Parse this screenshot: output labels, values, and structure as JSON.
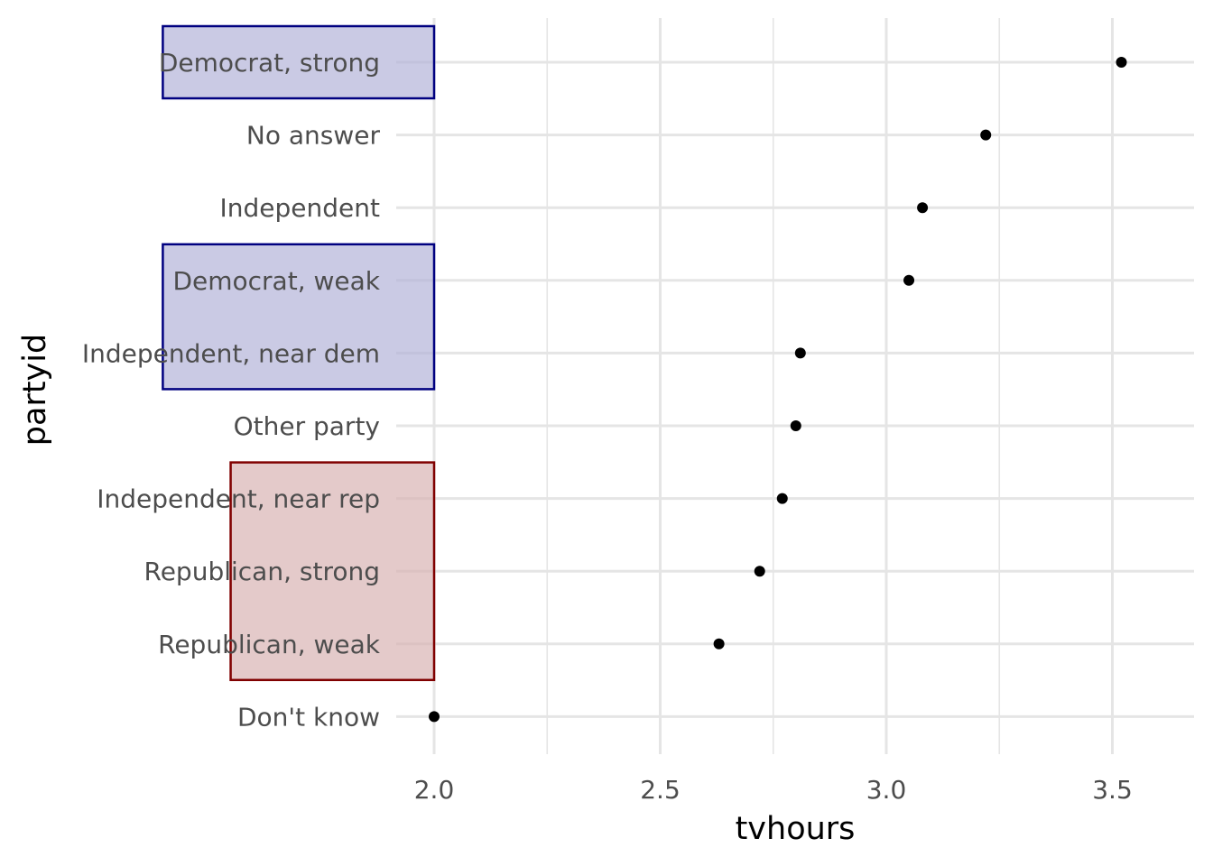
{
  "chart_data": {
    "type": "scatter",
    "title": "",
    "xlabel": "tvhours",
    "ylabel": "partyid",
    "xlim": [
      1.92,
      3.68
    ],
    "x_ticks": [
      2.0,
      2.5,
      3.0,
      3.5
    ],
    "x_tick_labels": [
      "2.0",
      "2.5",
      "3.0",
      "3.5"
    ],
    "grid": true,
    "point_color": "#000000",
    "categories": [
      "Democrat, strong",
      "No answer",
      "Independent",
      "Democrat, weak",
      "Independent, near dem",
      "Other party",
      "Independent, near rep",
      "Republican, strong",
      "Republican, weak",
      "Don't know"
    ],
    "values": [
      3.52,
      3.22,
      3.08,
      3.05,
      2.81,
      2.8,
      2.77,
      2.72,
      2.63,
      2.0
    ],
    "highlight_bands": [
      {
        "party": "Democrat",
        "x_range": [
          1.4,
          2.0
        ],
        "category_from": "Democrat, strong",
        "category_to": "Democrat, strong",
        "fill": "#b3b3d9",
        "stroke": "#000080"
      },
      {
        "party": "Democrat",
        "x_range": [
          1.4,
          2.0
        ],
        "category_from": "Democrat, weak",
        "category_to": "Independent, near dem",
        "fill": "#b3b3d9",
        "stroke": "#000080"
      },
      {
        "party": "Republican",
        "x_range": [
          1.55,
          2.0
        ],
        "category_from": "Independent, near rep",
        "category_to": "Republican, weak",
        "fill": "#d8b3b3",
        "stroke": "#800000"
      }
    ],
    "gridline_color": "#e5e5e5"
  }
}
